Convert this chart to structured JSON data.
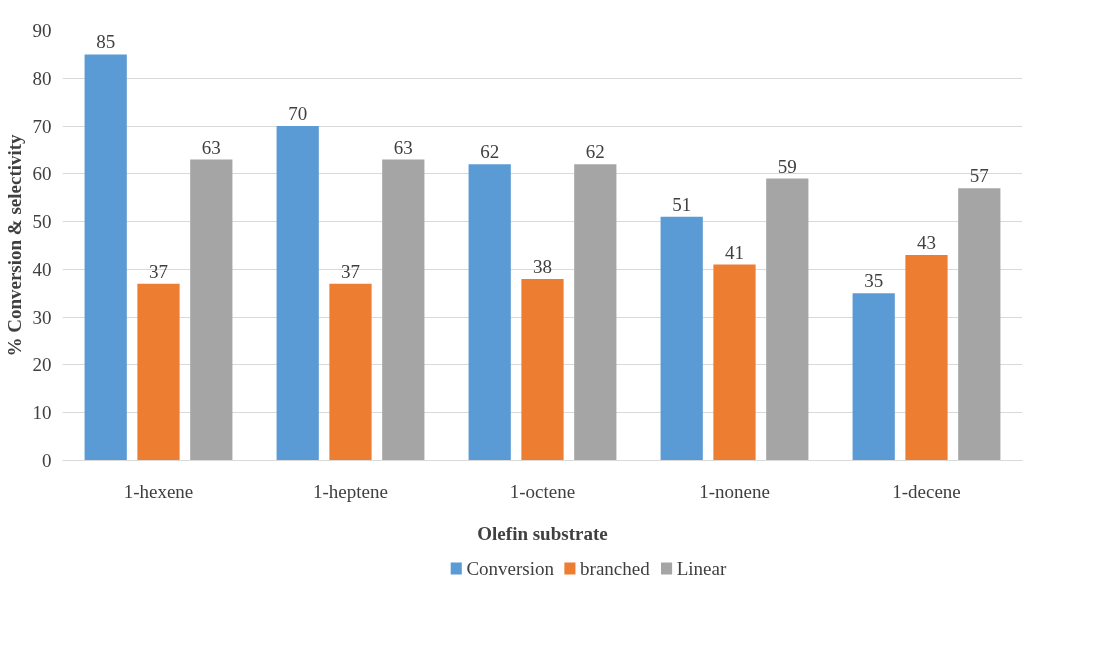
{
  "chart_data": {
    "type": "bar",
    "categories": [
      "1-hexene",
      "1-heptene",
      "1-octene",
      "1-nonene",
      "1-decene"
    ],
    "xlabel": "Olefin substrate",
    "ylabel": "% Conversion & selectivity",
    "series": [
      {
        "name": "Conversion",
        "color": "#5b9bd5",
        "values": [
          85,
          70,
          62,
          51,
          35
        ]
      },
      {
        "name": "branched",
        "color": "#ed7d31",
        "values": [
          37,
          37,
          38,
          41,
          43
        ]
      },
      {
        "name": "Linear",
        "color": "#a5a5a5",
        "values": [
          63,
          63,
          62,
          59,
          57
        ]
      }
    ],
    "ylim": [
      0,
      90
    ],
    "yticks": [
      0,
      10,
      20,
      30,
      40,
      50,
      60,
      70,
      80,
      90
    ],
    "grid": "y",
    "legend": "bottom",
    "data_labels": true
  }
}
